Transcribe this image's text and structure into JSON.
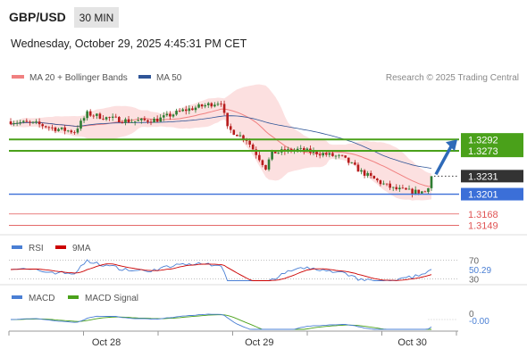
{
  "header": {
    "symbol": "GBP/USD",
    "timeframe": "30 MIN",
    "datetime": "Wednesday, October 29, 2025 4:45:31 PM CET",
    "copyright": "Research © 2025 Trading Central"
  },
  "colors": {
    "candle_up": "#2e7d32",
    "candle_down": "#b71c1c",
    "ma20": "#f08080",
    "bollinger_fill": "#fbd5d5",
    "ma50": "#2f5597",
    "resistance": "#4aa11a",
    "current": "#333333",
    "pivot": "#3b6fd8",
    "support": "#e05555",
    "rsi": "#4a7fd4",
    "rsi_ma": "#cc0000",
    "macd": "#4a7fd4",
    "macd_signal": "#4aa11a",
    "arrow": "#2e6ab8"
  },
  "chart_data": [
    {
      "type": "candlestick",
      "legend": [
        {
          "label": "MA 20 + Bollinger Bands",
          "color": "#f08080"
        },
        {
          "label": "MA 50",
          "color": "#2f5597"
        }
      ],
      "ylim": [
        1.3135,
        1.338
      ],
      "levels": [
        {
          "value": 1.3292,
          "label": "1.3292",
          "kind": "resistance"
        },
        {
          "value": 1.3273,
          "label": "1.3273",
          "kind": "resistance"
        },
        {
          "value": 1.3231,
          "label": "1.3231",
          "kind": "current"
        },
        {
          "value": 1.3201,
          "label": "1.3201",
          "kind": "pivot"
        },
        {
          "value": 1.3168,
          "label": "1.3168",
          "kind": "support"
        },
        {
          "value": 1.3149,
          "label": "1.3149",
          "kind": "support"
        }
      ],
      "x_ticks": [
        {
          "label": "Oct 28",
          "index": 30
        },
        {
          "label": "Oct 29",
          "index": 78
        },
        {
          "label": "Oct 30",
          "index": 126
        }
      ],
      "x_count": 140,
      "price_path": [
        {
          "i": 0,
          "v": 1.3322
        },
        {
          "i": 8,
          "v": 1.3318
        },
        {
          "i": 14,
          "v": 1.331
        },
        {
          "i": 20,
          "v": 1.3305
        },
        {
          "i": 24,
          "v": 1.3335
        },
        {
          "i": 30,
          "v": 1.3328
        },
        {
          "i": 38,
          "v": 1.3322
        },
        {
          "i": 46,
          "v": 1.3325
        },
        {
          "i": 54,
          "v": 1.334
        },
        {
          "i": 62,
          "v": 1.335
        },
        {
          "i": 66,
          "v": 1.3355
        },
        {
          "i": 68,
          "v": 1.331
        },
        {
          "i": 74,
          "v": 1.3292
        },
        {
          "i": 80,
          "v": 1.3245
        },
        {
          "i": 82,
          "v": 1.327
        },
        {
          "i": 90,
          "v": 1.3275
        },
        {
          "i": 96,
          "v": 1.327
        },
        {
          "i": 104,
          "v": 1.3262
        },
        {
          "i": 110,
          "v": 1.3238
        },
        {
          "i": 116,
          "v": 1.322
        },
        {
          "i": 120,
          "v": 1.321
        },
        {
          "i": 126,
          "v": 1.3205
        },
        {
          "i": 130,
          "v": 1.3205
        },
        {
          "i": 132,
          "v": 1.3225
        }
      ]
    },
    {
      "type": "line",
      "legend": [
        {
          "label": "RSI",
          "color": "#4a7fd4"
        },
        {
          "label": "9MA",
          "color": "#cc0000"
        }
      ],
      "ylim": [
        25,
        75
      ],
      "y_ticks": [
        70,
        30
      ],
      "last_value": 50.29,
      "last_label": "50.29"
    },
    {
      "type": "line",
      "legend": [
        {
          "label": "MACD",
          "color": "#4a7fd4"
        },
        {
          "label": "MACD Signal",
          "color": "#4aa11a"
        }
      ],
      "y_ticks": [
        0
      ],
      "last_label": "-0.00"
    }
  ]
}
